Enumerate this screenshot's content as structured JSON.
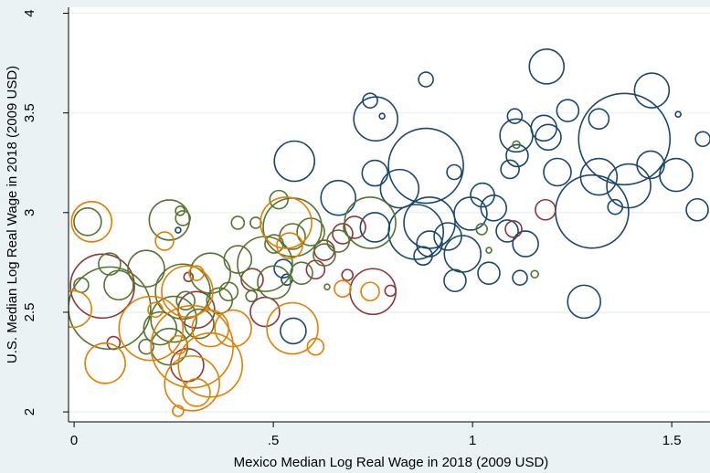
{
  "chart_data": {
    "type": "bubble",
    "x_label": "Mexico Median Log Real Wage in 2018 (2009 USD)",
    "y_label": "U.S. Median Log Real Wage in 2018 (2009 USD)",
    "xlim": [
      -0.014,
      1.596
    ],
    "ylim": [
      1.95,
      4.03
    ],
    "xticks": [
      0,
      {
        "value": 0.5,
        "label": ".5"
      },
      1,
      1.5
    ],
    "yticks": [
      2,
      2.5,
      3,
      3.5,
      4
    ],
    "grid": true,
    "series": [
      {
        "color": "#1a476f",
        "x": [
          1.186,
          0.883,
          1.45,
          0.743,
          0.773,
          0.757,
          1.106,
          1.239,
          1.179,
          1.317,
          1.516,
          1.578,
          1.11,
          1.19,
          1.381,
          0.883,
          0.553,
          1.112,
          1.213,
          1.094,
          1.317,
          1.511,
          1.447,
          1.392,
          0.755,
          0.817,
          0.954,
          0.663,
          1.053,
          1.025,
          0.995,
          0.892,
          0.858,
          0.755,
          0.938,
          1.087,
          0.892,
          1.3,
          1.564,
          1.358,
          0.975,
          1.041,
          0.956,
          0.876,
          1.133,
          1.119,
          1.28,
          0.55,
          0.525,
          0.534,
          0.261
        ],
        "values": [
          3.733,
          3.668,
          3.613,
          3.562,
          3.484,
          3.47,
          3.484,
          3.512,
          3.424,
          3.47,
          3.493,
          3.369,
          3.387,
          3.378,
          3.369,
          3.235,
          3.258,
          3.286,
          3.203,
          3.217,
          3.18,
          3.189,
          3.24,
          3.134,
          3.198,
          3.12,
          3.203,
          3.074,
          3.023,
          3.088,
          2.995,
          2.949,
          2.903,
          2.926,
          2.88,
          2.908,
          2.843,
          3.005,
          3.014,
          3.028,
          2.793,
          2.696,
          2.659,
          2.783,
          2.843,
          2.673,
          2.553,
          2.406,
          2.719,
          2.664,
          2.912
        ],
        "sizes": [
          361,
          64,
          361,
          64,
          9,
          576,
          64,
          144,
          196,
          121,
          9,
          64,
          324,
          196,
          2500,
          1681,
          484,
          144,
          225,
          100,
          400,
          324,
          225,
          576,
          196,
          441,
          64,
          361,
          196,
          169,
          324,
          784,
          900,
          256,
          225,
          144,
          196,
          1600,
          144,
          64,
          400,
          144,
          144,
          100,
          196,
          64,
          324,
          196,
          100,
          36,
          9
        ]
      },
      {
        "color": "#90353b",
        "x": [
          0.071,
          0.099,
          0.287,
          0.447,
          0.479,
          0.606,
          0.628,
          0.674,
          0.704,
          0.75,
          0.794,
          1.103,
          1.183,
          0.686,
          0.284,
          0.307
        ],
        "values": [
          2.631,
          2.346,
          2.677,
          2.664,
          2.502,
          2.714,
          2.811,
          2.894,
          2.926,
          2.604,
          2.608,
          2.917,
          3.014,
          2.687,
          2.235,
          2.512
        ],
        "sizes": [
          1225,
          49,
          25,
          144,
          256,
          100,
          121,
          121,
          144,
          625,
          36,
          81,
          121,
          36,
          324,
          400
        ]
      },
      {
        "color": "#55752f",
        "x": [
          0.034,
          0.018,
          0.112,
          0.089,
          0.089,
          0.239,
          0.181,
          0.273,
          0.25,
          0.342,
          0.411,
          0.411,
          0.456,
          0.514,
          0.502,
          0.548,
          0.479,
          0.571,
          0.594,
          0.628,
          0.663,
          0.502,
          0.365,
          0.216,
          0.239,
          0.314,
          0.273,
          0.445,
          1.156,
          1.041,
          1.11,
          1.023,
          0.266,
          0.28,
          0.181,
          0.635,
          0.548,
          0.388,
          0.743
        ],
        "values": [
          2.954,
          2.636,
          2.636,
          2.521,
          2.742,
          2.963,
          2.719,
          2.604,
          2.465,
          2.696,
          2.765,
          2.949,
          2.949,
          3.065,
          2.843,
          2.88,
          2.742,
          2.696,
          2.903,
          2.788,
          2.857,
          2.65,
          2.558,
          2.419,
          2.327,
          2.442,
          2.972,
          2.581,
          2.691,
          2.811,
          3.341,
          2.917,
          3.009,
          2.558,
          2.327,
          2.627,
          2.926,
          2.604,
          2.949
        ],
        "sizes": [
          225,
          64,
          256,
          2025,
          144,
          484,
          400,
          900,
          625,
          484,
          225,
          49,
          36,
          100,
          100,
          196,
          900,
          144,
          225,
          144,
          144,
          324,
          196,
          324,
          400,
          256,
          64,
          36,
          16,
          9,
          16,
          36,
          25,
          100,
          64,
          9,
          1024,
          100,
          784
        ]
      },
      {
        "color": "#e37e00",
        "x": [
          0.044,
          -0.002,
          0.078,
          0.193,
          0.227,
          0.284,
          0.296,
          0.296,
          0.342,
          0.307,
          0.261,
          0.399,
          0.342,
          0.307,
          0.532,
          0.541,
          0.548,
          0.606,
          0.674,
          0.743,
          0.261,
          0.204
        ],
        "values": [
          2.954,
          2.516,
          2.244,
          2.419,
          2.857,
          2.604,
          2.327,
          2.143,
          2.419,
          2.696,
          2.336,
          2.419,
          2.235,
          2.097,
          2.949,
          2.834,
          2.419,
          2.327,
          2.618,
          2.604,
          2.005,
          2.512
        ],
        "sizes": [
          484,
          400,
          484,
          1225,
          100,
          784,
          2025,
          900,
          400,
          64,
          100,
          400,
          1225,
          225,
          784,
          196,
          784,
          81,
          81,
          100,
          36,
          64
        ]
      }
    ]
  }
}
